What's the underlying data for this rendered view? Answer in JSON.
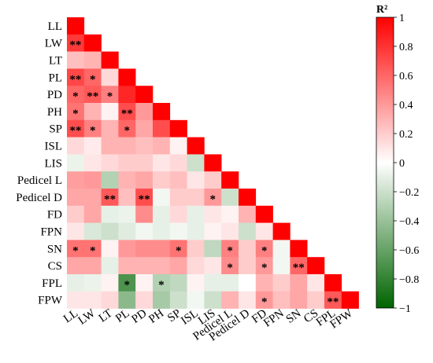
{
  "chart_data": {
    "type": "heatmap",
    "layout": "lower-triangle",
    "variables": [
      "LL",
      "LW",
      "LT",
      "PL",
      "PD",
      "PH",
      "SP",
      "ISL",
      "LIS",
      "Pedicel L",
      "Pedicel D",
      "FD",
      "FPN",
      "SN",
      "CS",
      "FPL",
      "FPW"
    ],
    "values": [
      [
        1
      ],
      [
        0.78,
        1
      ],
      [
        0.25,
        0.3,
        1
      ],
      [
        0.72,
        0.6,
        0.15,
        1
      ],
      [
        0.6,
        0.65,
        0.5,
        0.85,
        1
      ],
      [
        0.55,
        0.3,
        0.05,
        0.7,
        0.4,
        1
      ],
      [
        0.7,
        0.5,
        0.3,
        0.6,
        0.35,
        0.7,
        1
      ],
      [
        0.15,
        0.08,
        0.3,
        0.3,
        0.25,
        0.3,
        0.05,
        1
      ],
      [
        -0.08,
        0.1,
        0.15,
        0.2,
        0.2,
        0.1,
        0.15,
        -0.2,
        1
      ],
      [
        0.38,
        0.4,
        -0.3,
        0.3,
        0.35,
        0.2,
        0.25,
        0.1,
        0.2,
        1
      ],
      [
        0.35,
        0.35,
        0.65,
        0.25,
        0.7,
        -0.05,
        0.2,
        0.2,
        0.4,
        -0.2,
        1
      ],
      [
        0.2,
        0.35,
        -0.1,
        -0.08,
        0.45,
        -0.1,
        0.15,
        -0.1,
        0.1,
        0.05,
        0.3,
        1
      ],
      [
        0.1,
        -0.15,
        -0.2,
        -0.12,
        -0.05,
        -0.1,
        -0.05,
        -0.1,
        0.05,
        0.1,
        -0.2,
        0.1,
        1
      ],
      [
        0.55,
        0.55,
        0.05,
        0.4,
        0.45,
        0.45,
        0.55,
        0.2,
        -0.25,
        0.5,
        0.2,
        0.5,
        -0.05,
        1
      ],
      [
        0.35,
        0.35,
        -0.1,
        0.3,
        0.3,
        0.3,
        0.35,
        0.15,
        0.1,
        0.45,
        0.2,
        0.4,
        -0.05,
        0.6,
        1
      ],
      [
        -0.1,
        -0.08,
        0.05,
        -0.7,
        0.05,
        -0.3,
        -0.25,
        0.05,
        -0.1,
        -0.1,
        0.0,
        0.3,
        0.2,
        0.35,
        0.1,
        1
      ],
      [
        0.1,
        0.1,
        0.15,
        -0.45,
        0.15,
        -0.35,
        -0.2,
        -0.05,
        -0.2,
        0.3,
        0.1,
        0.4,
        0.25,
        0.35,
        0.2,
        0.65,
        1
      ]
    ],
    "significance": [
      {
        "row": 1,
        "col": 0,
        "mark": "**"
      },
      {
        "row": 3,
        "col": 0,
        "mark": "**"
      },
      {
        "row": 3,
        "col": 1,
        "mark": "*"
      },
      {
        "row": 4,
        "col": 0,
        "mark": "*"
      },
      {
        "row": 4,
        "col": 1,
        "mark": "**"
      },
      {
        "row": 4,
        "col": 2,
        "mark": "*"
      },
      {
        "row": 5,
        "col": 0,
        "mark": "*"
      },
      {
        "row": 5,
        "col": 3,
        "mark": "**"
      },
      {
        "row": 6,
        "col": 0,
        "mark": "**"
      },
      {
        "row": 6,
        "col": 1,
        "mark": "*"
      },
      {
        "row": 6,
        "col": 3,
        "mark": "*"
      },
      {
        "row": 10,
        "col": 2,
        "mark": "**"
      },
      {
        "row": 10,
        "col": 4,
        "mark": "**"
      },
      {
        "row": 10,
        "col": 8,
        "mark": "*"
      },
      {
        "row": 13,
        "col": 0,
        "mark": "*"
      },
      {
        "row": 13,
        "col": 1,
        "mark": "*"
      },
      {
        "row": 13,
        "col": 6,
        "mark": "*"
      },
      {
        "row": 13,
        "col": 9,
        "mark": "*"
      },
      {
        "row": 13,
        "col": 11,
        "mark": "*"
      },
      {
        "row": 14,
        "col": 9,
        "mark": "*"
      },
      {
        "row": 14,
        "col": 11,
        "mark": "*"
      },
      {
        "row": 14,
        "col": 13,
        "mark": "**"
      },
      {
        "row": 15,
        "col": 3,
        "mark": "*"
      },
      {
        "row": 15,
        "col": 5,
        "mark": "*"
      },
      {
        "row": 16,
        "col": 11,
        "mark": "*"
      },
      {
        "row": 16,
        "col": 15,
        "mark": "**"
      }
    ],
    "colorbar": {
      "title": "R²",
      "range": [
        -1,
        1
      ],
      "ticks": [
        1,
        0.8,
        0.6,
        0.4,
        0.2,
        0,
        -0.2,
        -0.4,
        -0.6,
        -0.8,
        -1
      ],
      "color_low": "#006400",
      "color_mid": "#ffffff",
      "color_high": "#ff0000"
    }
  }
}
